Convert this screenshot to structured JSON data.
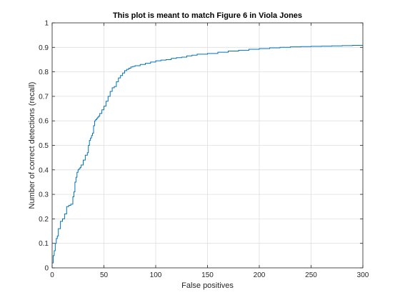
{
  "chart_data": {
    "type": "line",
    "title": "This plot is meant to match Figure 6 in Viola Jones",
    "xlabel": "False positives",
    "ylabel": "Number of correct detections (recall)",
    "xlim": [
      0,
      300
    ],
    "ylim": [
      0,
      1
    ],
    "xticks": [
      0,
      50,
      100,
      150,
      200,
      250,
      300
    ],
    "yticks": [
      0,
      0.1,
      0.2,
      0.3,
      0.4,
      0.5,
      0.6,
      0.7,
      0.8,
      0.9,
      1
    ],
    "xtick_labels": [
      "0",
      "50",
      "100",
      "150",
      "200",
      "250",
      "300"
    ],
    "ytick_labels": [
      "0",
      "0.1",
      "0.2",
      "0.3",
      "0.4",
      "0.5",
      "0.6",
      "0.7",
      "0.8",
      "0.9",
      "1"
    ],
    "grid": true,
    "line_color": "#0072BD",
    "step": true,
    "series": [
      {
        "x": [
          0,
          1,
          2,
          3,
          4,
          5,
          6,
          8,
          10,
          12,
          14,
          16,
          18,
          20,
          21,
          22,
          23,
          24,
          25,
          26,
          27,
          28,
          30,
          32,
          34,
          35,
          36,
          37,
          38,
          39,
          40,
          41,
          42,
          43,
          44,
          45,
          46,
          48,
          50,
          52,
          54,
          56,
          58,
          60,
          62,
          64,
          66,
          68,
          70,
          72,
          74,
          76,
          78,
          80,
          85,
          90,
          95,
          100,
          105,
          110,
          115,
          120,
          125,
          130,
          135,
          140,
          150,
          160,
          170,
          180,
          190,
          200,
          210,
          220,
          230,
          240,
          250,
          260,
          270,
          280,
          290,
          300
        ],
        "y": [
          0.02,
          0.05,
          0.07,
          0.1,
          0.12,
          0.13,
          0.16,
          0.19,
          0.2,
          0.22,
          0.25,
          0.255,
          0.26,
          0.29,
          0.31,
          0.35,
          0.37,
          0.39,
          0.4,
          0.405,
          0.41,
          0.42,
          0.44,
          0.46,
          0.47,
          0.5,
          0.52,
          0.53,
          0.54,
          0.55,
          0.58,
          0.6,
          0.605,
          0.61,
          0.615,
          0.62,
          0.63,
          0.645,
          0.66,
          0.68,
          0.7,
          0.72,
          0.735,
          0.74,
          0.76,
          0.775,
          0.785,
          0.795,
          0.805,
          0.81,
          0.815,
          0.82,
          0.822,
          0.825,
          0.83,
          0.835,
          0.84,
          0.845,
          0.848,
          0.85,
          0.855,
          0.858,
          0.86,
          0.865,
          0.868,
          0.872,
          0.875,
          0.88,
          0.885,
          0.888,
          0.892,
          0.895,
          0.898,
          0.9,
          0.902,
          0.903,
          0.904,
          0.905,
          0.906,
          0.907,
          0.908,
          0.908
        ]
      }
    ]
  }
}
